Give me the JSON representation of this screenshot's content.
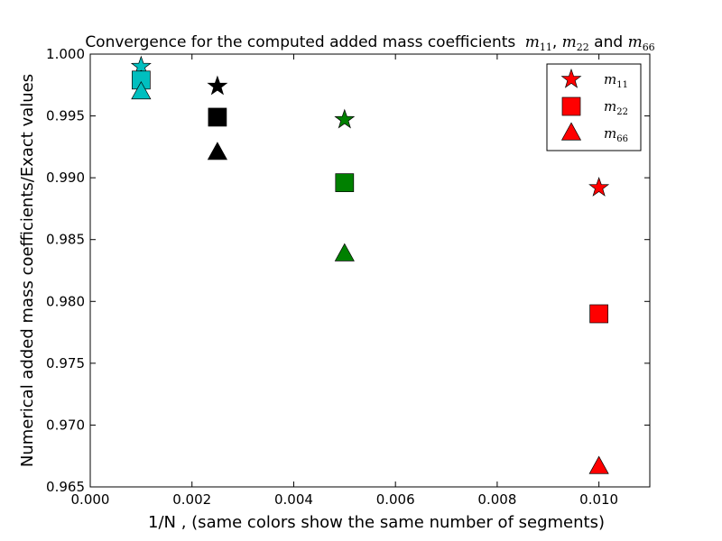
{
  "chart_data": {
    "type": "scatter",
    "title": "Convergence for the computed added mass coefficients",
    "title_terms": [
      "m",
      "11",
      ", ",
      "m",
      "22",
      " and ",
      "m",
      "66"
    ],
    "xlabel": "1/N , (same colors show the same number of segments)",
    "ylabel": "Numerical added mass coefficients/Exact values",
    "xlim": [
      0.0,
      0.011
    ],
    "ylim": [
      0.965,
      1.0
    ],
    "x_ticks": [
      "0.000",
      "0.002",
      "0.004",
      "0.006",
      "0.008",
      "0.010"
    ],
    "x_tick_values": [
      0.0,
      0.002,
      0.004,
      0.006,
      0.008,
      0.01
    ],
    "y_ticks": [
      "0.965",
      "0.970",
      "0.975",
      "0.980",
      "0.985",
      "0.990",
      "0.995",
      "1.000"
    ],
    "y_tick_values": [
      0.965,
      0.97,
      0.975,
      0.98,
      0.985,
      0.99,
      0.995,
      1.0
    ],
    "legend_position": "top-right",
    "colors": [
      "#ff0000",
      "#008000",
      "#000000",
      "#00bfbf"
    ],
    "legend_color": "#ff0000",
    "series": [
      {
        "name": "m11",
        "legend_base": "m",
        "legend_sub": "11",
        "marker": "star",
        "points": [
          {
            "x": 0.01,
            "y": 0.9892
          },
          {
            "x": 0.005,
            "y": 0.9947
          },
          {
            "x": 0.0025,
            "y": 0.9974
          },
          {
            "x": 0.001,
            "y": 0.999
          }
        ]
      },
      {
        "name": "m22",
        "legend_base": "m",
        "legend_sub": "22",
        "marker": "square",
        "points": [
          {
            "x": 0.01,
            "y": 0.979
          },
          {
            "x": 0.005,
            "y": 0.9896
          },
          {
            "x": 0.0025,
            "y": 0.9949
          },
          {
            "x": 0.001,
            "y": 0.9979
          }
        ]
      },
      {
        "name": "m66",
        "legend_base": "m",
        "legend_sub": "66",
        "marker": "triangle",
        "points": [
          {
            "x": 0.01,
            "y": 0.9666
          },
          {
            "x": 0.005,
            "y": 0.9838
          },
          {
            "x": 0.0025,
            "y": 0.992
          },
          {
            "x": 0.001,
            "y": 0.9969
          }
        ]
      }
    ]
  }
}
